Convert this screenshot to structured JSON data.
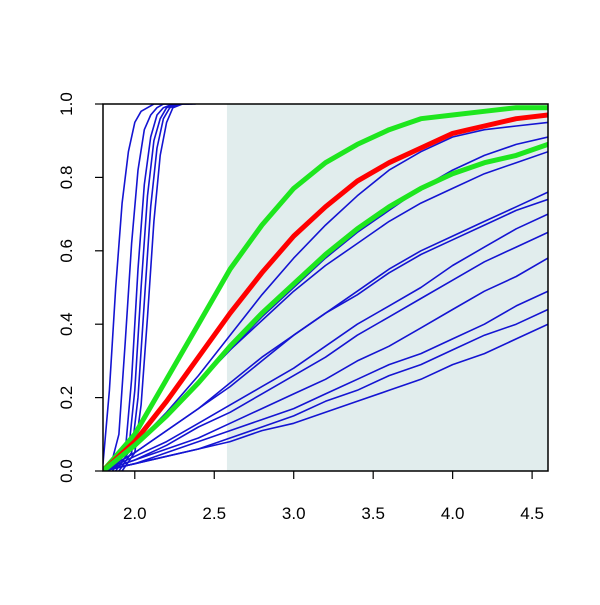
{
  "chart_data": {
    "type": "line",
    "title": "",
    "xlabel": "",
    "ylabel": "",
    "xlim": [
      1.8,
      4.6
    ],
    "ylim": [
      0.0,
      1.0
    ],
    "x_ticks": [
      "2.0",
      "2.5",
      "3.0",
      "3.5",
      "4.0",
      "4.5"
    ],
    "y_ticks": [
      "0.0",
      "0.2",
      "0.4",
      "0.6",
      "0.8",
      "1.0"
    ],
    "grid": false,
    "legend": "none",
    "shaded_region": {
      "x_from": 2.58,
      "x_to": 4.6,
      "color": "#e1eded"
    },
    "colors": {
      "blue": "#1414d2",
      "red": "#ff0000",
      "green": "#1ee61e",
      "axis": "#000000"
    },
    "series": [
      {
        "color": "blue",
        "width": 1.6,
        "x": [
          1.8,
          1.84,
          1.88,
          1.92,
          1.96,
          2.0,
          2.04,
          2.08,
          2.12,
          2.16,
          2.2,
          2.24,
          2.3
        ],
        "y": [
          0.02,
          0.22,
          0.5,
          0.73,
          0.87,
          0.95,
          0.98,
          0.99,
          1.0,
          1.0,
          1.0,
          1.0,
          1.0
        ]
      },
      {
        "color": "blue",
        "width": 1.6,
        "x": [
          1.84,
          1.9,
          1.94,
          1.98,
          2.02,
          2.06,
          2.1,
          2.14,
          2.18,
          2.22,
          2.3
        ],
        "y": [
          0.0,
          0.1,
          0.35,
          0.62,
          0.82,
          0.93,
          0.97,
          0.99,
          1.0,
          1.0,
          1.0
        ]
      },
      {
        "color": "blue",
        "width": 1.6,
        "x": [
          1.86,
          1.94,
          1.98,
          2.02,
          2.06,
          2.1,
          2.14,
          2.18,
          2.24,
          2.3
        ],
        "y": [
          0.0,
          0.05,
          0.25,
          0.55,
          0.78,
          0.91,
          0.97,
          0.99,
          1.0,
          1.0
        ]
      },
      {
        "color": "blue",
        "width": 1.6,
        "x": [
          1.88,
          1.96,
          2.0,
          2.04,
          2.08,
          2.12,
          2.16,
          2.2,
          2.26,
          2.34
        ],
        "y": [
          0.0,
          0.05,
          0.22,
          0.5,
          0.75,
          0.9,
          0.96,
          0.99,
          1.0,
          1.0
        ]
      },
      {
        "color": "blue",
        "width": 1.6,
        "x": [
          1.9,
          1.98,
          2.02,
          2.06,
          2.1,
          2.14,
          2.18,
          2.22,
          2.28,
          2.36
        ],
        "y": [
          0.0,
          0.05,
          0.2,
          0.46,
          0.72,
          0.88,
          0.96,
          0.99,
          1.0,
          1.0
        ]
      },
      {
        "color": "blue",
        "width": 1.6,
        "x": [
          1.92,
          2.0,
          2.04,
          2.08,
          2.12,
          2.16,
          2.2,
          2.24,
          2.3,
          2.38
        ],
        "y": [
          0.0,
          0.05,
          0.18,
          0.42,
          0.68,
          0.86,
          0.95,
          0.99,
          1.0,
          1.0
        ]
      },
      {
        "color": "blue",
        "width": 1.6,
        "x": [
          1.8,
          2.0,
          2.2,
          2.4,
          2.6,
          2.8,
          3.0,
          3.2,
          3.4,
          3.6,
          3.8,
          4.0,
          4.2,
          4.4,
          4.6
        ],
        "y": [
          0.0,
          0.05,
          0.11,
          0.17,
          0.23,
          0.3,
          0.37,
          0.43,
          0.48,
          0.54,
          0.59,
          0.63,
          0.67,
          0.71,
          0.74
        ]
      },
      {
        "color": "blue",
        "width": 1.6,
        "x": [
          1.8,
          2.0,
          2.2,
          2.4,
          2.6,
          2.8,
          3.0,
          3.2,
          3.4,
          3.6,
          3.8,
          4.0,
          4.2,
          4.4,
          4.6
        ],
        "y": [
          0.0,
          0.05,
          0.11,
          0.17,
          0.24,
          0.31,
          0.37,
          0.43,
          0.49,
          0.55,
          0.6,
          0.64,
          0.68,
          0.72,
          0.76
        ]
      },
      {
        "color": "blue",
        "width": 1.6,
        "x": [
          1.8,
          2.0,
          2.2,
          2.4,
          2.6,
          2.8,
          3.0,
          3.2,
          3.4,
          3.6,
          3.8,
          4.0,
          4.2,
          4.4,
          4.6
        ],
        "y": [
          0.0,
          0.07,
          0.15,
          0.24,
          0.33,
          0.41,
          0.49,
          0.56,
          0.62,
          0.68,
          0.73,
          0.77,
          0.81,
          0.84,
          0.87
        ]
      },
      {
        "color": "blue",
        "width": 1.6,
        "x": [
          1.8,
          2.0,
          2.2,
          2.4,
          2.6,
          2.8,
          3.0,
          3.2,
          3.4,
          3.6,
          3.8,
          4.0,
          4.2,
          4.4,
          4.6
        ],
        "y": [
          0.0,
          0.07,
          0.15,
          0.24,
          0.33,
          0.42,
          0.5,
          0.58,
          0.65,
          0.71,
          0.77,
          0.82,
          0.86,
          0.89,
          0.91
        ]
      },
      {
        "color": "blue",
        "width": 1.6,
        "x": [
          1.8,
          2.0,
          2.2,
          2.4,
          2.6,
          2.8,
          3.0,
          3.2,
          3.4,
          3.6,
          3.8,
          4.0,
          4.2,
          4.4,
          4.6
        ],
        "y": [
          0.0,
          0.07,
          0.16,
          0.26,
          0.37,
          0.48,
          0.58,
          0.67,
          0.75,
          0.82,
          0.87,
          0.91,
          0.93,
          0.94,
          0.95
        ]
      },
      {
        "color": "blue",
        "width": 1.6,
        "x": [
          1.8,
          2.0,
          2.2,
          2.4,
          2.6,
          2.8,
          3.0,
          3.2,
          3.4,
          3.6,
          3.8,
          4.0,
          4.2,
          4.4,
          4.6
        ],
        "y": [
          0.0,
          0.04,
          0.08,
          0.13,
          0.18,
          0.23,
          0.28,
          0.34,
          0.4,
          0.45,
          0.5,
          0.56,
          0.61,
          0.66,
          0.7
        ]
      },
      {
        "color": "blue",
        "width": 1.6,
        "x": [
          1.8,
          2.0,
          2.2,
          2.4,
          2.6,
          2.8,
          3.0,
          3.2,
          3.4,
          3.6,
          3.8,
          4.0,
          4.2,
          4.4,
          4.6
        ],
        "y": [
          0.0,
          0.03,
          0.07,
          0.12,
          0.16,
          0.21,
          0.26,
          0.31,
          0.37,
          0.42,
          0.47,
          0.52,
          0.57,
          0.61,
          0.65
        ]
      },
      {
        "color": "blue",
        "width": 1.6,
        "x": [
          1.8,
          2.0,
          2.2,
          2.4,
          2.6,
          2.8,
          3.0,
          3.2,
          3.4,
          3.6,
          3.8,
          4.0,
          4.2,
          4.4,
          4.6
        ],
        "y": [
          0.0,
          0.03,
          0.06,
          0.09,
          0.13,
          0.17,
          0.21,
          0.25,
          0.3,
          0.34,
          0.39,
          0.44,
          0.49,
          0.53,
          0.58
        ]
      },
      {
        "color": "blue",
        "width": 1.6,
        "x": [
          1.8,
          2.0,
          2.2,
          2.4,
          2.6,
          2.8,
          3.0,
          3.2,
          3.4,
          3.6,
          3.8,
          4.0,
          4.2,
          4.4,
          4.6
        ],
        "y": [
          0.0,
          0.02,
          0.05,
          0.08,
          0.11,
          0.14,
          0.17,
          0.21,
          0.25,
          0.29,
          0.32,
          0.36,
          0.4,
          0.45,
          0.49
        ]
      },
      {
        "color": "blue",
        "width": 1.6,
        "x": [
          1.8,
          2.0,
          2.2,
          2.4,
          2.6,
          2.8,
          3.0,
          3.2,
          3.4,
          3.6,
          3.8,
          4.0,
          4.2,
          4.4,
          4.6
        ],
        "y": [
          0.0,
          0.02,
          0.04,
          0.06,
          0.09,
          0.12,
          0.15,
          0.19,
          0.22,
          0.26,
          0.29,
          0.33,
          0.37,
          0.4,
          0.44
        ]
      },
      {
        "color": "blue",
        "width": 1.6,
        "x": [
          1.8,
          2.0,
          2.2,
          2.4,
          2.6,
          2.8,
          3.0,
          3.2,
          3.4,
          3.6,
          3.8,
          4.0,
          4.2,
          4.4,
          4.6
        ],
        "y": [
          0.0,
          0.02,
          0.04,
          0.06,
          0.08,
          0.11,
          0.13,
          0.16,
          0.19,
          0.22,
          0.25,
          0.29,
          0.32,
          0.36,
          0.4
        ]
      },
      {
        "color": "green",
        "width": 5,
        "x": [
          1.8,
          2.0,
          2.2,
          2.4,
          2.6,
          2.8,
          3.0,
          3.2,
          3.4,
          3.6,
          3.8,
          4.0,
          4.2,
          4.4,
          4.6
        ],
        "y": [
          0.0,
          0.1,
          0.25,
          0.4,
          0.55,
          0.67,
          0.77,
          0.84,
          0.89,
          0.93,
          0.96,
          0.97,
          0.98,
          0.99,
          0.99
        ]
      },
      {
        "color": "red",
        "width": 5,
        "x": [
          1.8,
          2.0,
          2.2,
          2.4,
          2.6,
          2.8,
          3.0,
          3.2,
          3.4,
          3.6,
          3.8,
          4.0,
          4.2,
          4.4,
          4.6
        ],
        "y": [
          0.0,
          0.08,
          0.19,
          0.31,
          0.43,
          0.54,
          0.64,
          0.72,
          0.79,
          0.84,
          0.88,
          0.92,
          0.94,
          0.96,
          0.97
        ]
      },
      {
        "color": "green",
        "width": 5,
        "x": [
          1.8,
          2.0,
          2.2,
          2.4,
          2.6,
          2.8,
          3.0,
          3.2,
          3.4,
          3.6,
          3.8,
          4.0,
          4.2,
          4.4,
          4.6
        ],
        "y": [
          0.0,
          0.07,
          0.15,
          0.24,
          0.34,
          0.43,
          0.51,
          0.59,
          0.66,
          0.72,
          0.77,
          0.81,
          0.84,
          0.86,
          0.89
        ]
      }
    ]
  }
}
